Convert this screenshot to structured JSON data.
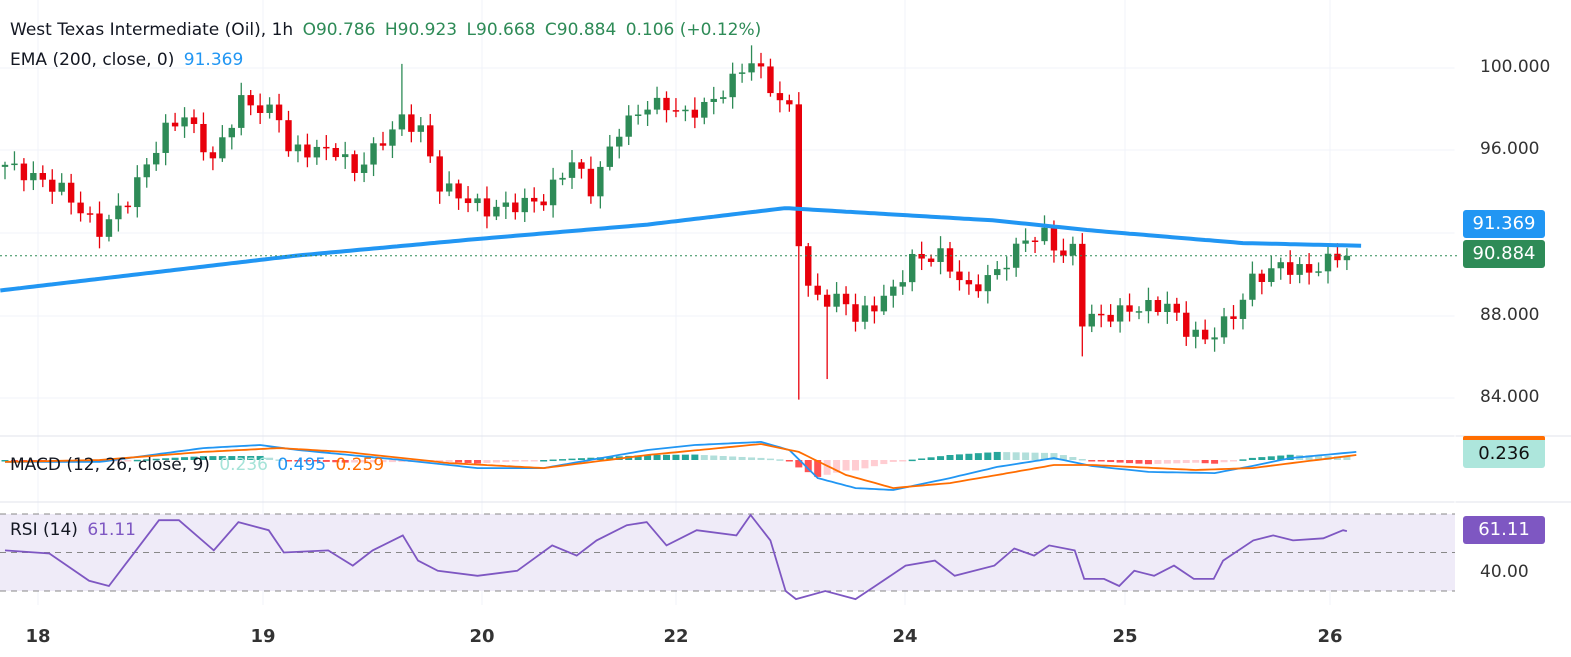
{
  "header": {
    "symbol": "West Texas Intermediate (Oil), 1h",
    "open": "O90.786",
    "high": "H90.923",
    "low": "L90.668",
    "close": "C90.884",
    "change": "0.106 (+0.12%)",
    "ema_label": "EMA (200, close, 0)",
    "ema_value": "91.369"
  },
  "macd_legend": {
    "label": "MACD (12, 26, close, 9)",
    "hist": "0.236",
    "macd": "0.495",
    "signal": "0.259"
  },
  "rsi_legend": {
    "label": "RSI (14)",
    "value": "61.11"
  },
  "price_axis": [
    "100.000",
    "96.000",
    "88.000",
    "84.000"
  ],
  "tags": {
    "ema": "91.369",
    "last": "90.884",
    "hist": "0.236",
    "rsi": "61.11",
    "rsi_axis": "40.00"
  },
  "day_labels": [
    "18",
    "19",
    "20",
    "22",
    "24",
    "25",
    "26"
  ],
  "colors": {
    "up": "#2e8b57",
    "down": "#e8000b",
    "ema": "#2196f3",
    "macd": "#2196f3",
    "signal": "#ff6d00",
    "rsi": "#7e57c2"
  },
  "chart_data": {
    "type": "candlestick",
    "title": "West Texas Intermediate (Oil), 1h",
    "ylim": [
      82.5,
      102.5
    ],
    "bars": 143,
    "close_path": [
      [
        0,
        95.3
      ],
      [
        6,
        94.1
      ],
      [
        10,
        92.1
      ],
      [
        13,
        93.6
      ],
      [
        17,
        97.0
      ],
      [
        19,
        97.7
      ],
      [
        22,
        95.5
      ],
      [
        25,
        98.4
      ],
      [
        29,
        97.7
      ],
      [
        30,
        96.0
      ],
      [
        35,
        96.0
      ],
      [
        37,
        95.0
      ],
      [
        42,
        97.5
      ],
      [
        44,
        97.0
      ],
      [
        46,
        94.3
      ],
      [
        51,
        93.1
      ],
      [
        57,
        93.6
      ],
      [
        60,
        95.5
      ],
      [
        62,
        94.1
      ],
      [
        65,
        97.0
      ],
      [
        68,
        98.2
      ],
      [
        70,
        98.2
      ],
      [
        72,
        97.7
      ],
      [
        75,
        98.4
      ],
      [
        78,
        99.9
      ],
      [
        79,
        100.4
      ],
      [
        82,
        98.4
      ],
      [
        83,
        98.0
      ],
      [
        84,
        91.7
      ],
      [
        85,
        89.2
      ],
      [
        87,
        88.7
      ],
      [
        89,
        88.7
      ],
      [
        90,
        87.8
      ],
      [
        92,
        88.5
      ],
      [
        94,
        89.2
      ],
      [
        96,
        90.7
      ],
      [
        99,
        90.9
      ],
      [
        102,
        89.2
      ],
      [
        105,
        90.1
      ],
      [
        108,
        91.7
      ],
      [
        110,
        91.9
      ],
      [
        112,
        90.9
      ],
      [
        113,
        91.2
      ],
      [
        114,
        87.8
      ],
      [
        117,
        88.0
      ],
      [
        119,
        88.3
      ],
      [
        123,
        88.5
      ],
      [
        125,
        87.3
      ],
      [
        127,
        86.8
      ],
      [
        130,
        88.0
      ],
      [
        132,
        89.7
      ],
      [
        135,
        90.4
      ],
      [
        138,
        90.1
      ],
      [
        141,
        90.9
      ],
      [
        142,
        90.884
      ]
    ],
    "extreme_wicks": [
      {
        "bar": 84,
        "low": 83.9
      },
      {
        "bar": 87,
        "low": 84.9
      },
      {
        "bar": 79,
        "high": 101.1
      },
      {
        "bar": 42,
        "high": 100.2
      },
      {
        "bar": 114,
        "low": 86.0
      },
      {
        "bar": 111,
        "high": 92.6
      }
    ],
    "ema200": [
      [
        -0.5,
        89.2
      ],
      [
        31,
        90.9
      ],
      [
        50,
        91.7
      ],
      [
        68,
        92.4
      ],
      [
        82.6,
        93.2
      ],
      [
        104.7,
        92.6
      ],
      [
        115.3,
        92.1
      ],
      [
        131,
        91.5
      ],
      [
        143.7,
        91.37
      ]
    ],
    "macd": [
      [
        0,
        -0.12
      ],
      [
        10,
        -0.12
      ],
      [
        21,
        0.74
      ],
      [
        27,
        0.93
      ],
      [
        31,
        0.62
      ],
      [
        42,
        0
      ],
      [
        50,
        -0.5
      ],
      [
        57,
        -0.5
      ],
      [
        68,
        0.62
      ],
      [
        73,
        0.93
      ],
      [
        80,
        1.12
      ],
      [
        83,
        0.62
      ],
      [
        86,
        -1.12
      ],
      [
        90,
        -1.74
      ],
      [
        94,
        -1.86
      ],
      [
        100,
        -1.12
      ],
      [
        105,
        -0.43
      ],
      [
        111,
        0.12
      ],
      [
        115,
        -0.37
      ],
      [
        121,
        -0.74
      ],
      [
        128,
        -0.81
      ],
      [
        132,
        -0.37
      ],
      [
        136,
        0.12
      ],
      [
        143,
        0.5
      ]
    ],
    "signal": [
      [
        0,
        -0.12
      ],
      [
        10,
        0
      ],
      [
        21,
        0.5
      ],
      [
        29,
        0.74
      ],
      [
        36,
        0.5
      ],
      [
        47,
        -0.19
      ],
      [
        57,
        -0.5
      ],
      [
        68,
        0.31
      ],
      [
        80,
        0.99
      ],
      [
        84,
        0.5
      ],
      [
        89,
        -0.93
      ],
      [
        94,
        -1.74
      ],
      [
        100,
        -1.43
      ],
      [
        105,
        -0.93
      ],
      [
        111,
        -0.31
      ],
      [
        115,
        -0.31
      ],
      [
        126,
        -0.62
      ],
      [
        132,
        -0.5
      ],
      [
        143,
        0.31
      ]
    ],
    "rsi": [
      [
        0,
        51.1
      ],
      [
        4.7,
        49.5
      ],
      [
        8.9,
        35.3
      ],
      [
        11,
        32.6
      ],
      [
        16.3,
        66.8
      ],
      [
        18.4,
        66.8
      ],
      [
        22.1,
        51.1
      ],
      [
        24.7,
        65.8
      ],
      [
        27.9,
        61.6
      ],
      [
        29.5,
        50
      ],
      [
        34.2,
        51.1
      ],
      [
        36.8,
        43.2
      ],
      [
        38.9,
        51.1
      ],
      [
        42.1,
        58.9
      ],
      [
        43.7,
        45.8
      ],
      [
        45.8,
        40.5
      ],
      [
        50,
        37.9
      ],
      [
        54.2,
        40.5
      ],
      [
        57.9,
        53.7
      ],
      [
        60.5,
        48.4
      ],
      [
        62.6,
        56.3
      ],
      [
        65.8,
        64.2
      ],
      [
        67.9,
        65.8
      ],
      [
        70,
        53.7
      ],
      [
        73.2,
        61.6
      ],
      [
        77.4,
        58.9
      ],
      [
        78.9,
        69.5
      ],
      [
        81,
        56.3
      ],
      [
        82.6,
        30
      ],
      [
        83.7,
        25.8
      ],
      [
        86.8,
        30
      ],
      [
        90,
        25.8
      ],
      [
        92.1,
        32.6
      ],
      [
        95.3,
        43.2
      ],
      [
        98.4,
        45.8
      ],
      [
        100.5,
        37.9
      ],
      [
        104.7,
        43.2
      ],
      [
        106.8,
        52.1
      ],
      [
        108.9,
        48.4
      ],
      [
        110.5,
        53.7
      ],
      [
        113.2,
        51.1
      ],
      [
        114.2,
        36.3
      ],
      [
        116.3,
        36.3
      ],
      [
        117.9,
        32.6
      ],
      [
        119.5,
        40.5
      ],
      [
        121.6,
        37.9
      ],
      [
        123.7,
        43.2
      ],
      [
        125.8,
        36.3
      ],
      [
        127.9,
        36.3
      ],
      [
        128.9,
        45.8
      ],
      [
        132.1,
        56.3
      ],
      [
        134.2,
        58.9
      ],
      [
        136.3,
        56.3
      ],
      [
        139.5,
        57.4
      ],
      [
        141.6,
        61.6
      ],
      [
        142,
        61.11
      ]
    ],
    "rsi_levels": [
      70,
      50,
      30
    ]
  }
}
